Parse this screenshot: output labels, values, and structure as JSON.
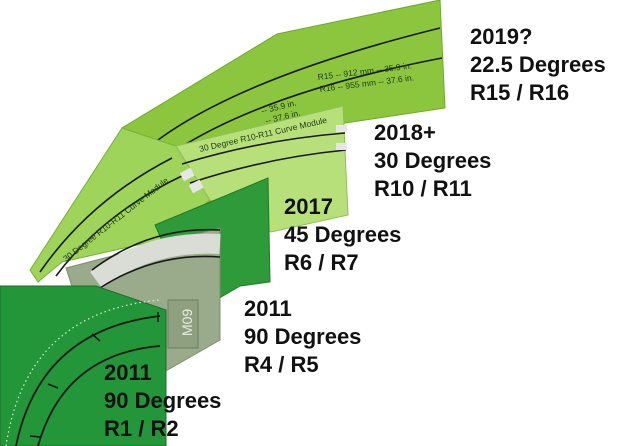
{
  "colors": {
    "lightest_green": "#b8e07a",
    "light_green": "#9fd45a",
    "lime_green": "#8cc63f",
    "mid_green": "#45a845",
    "dark_green": "#2e9a3a",
    "darkest_green": "#24963a",
    "gray_module": "#9aab8c",
    "track_line": "#1a1a1a",
    "road_band": "#d9ddd6"
  },
  "modules": [
    {
      "id": "r15-r16",
      "year": "2019?",
      "angle": "22.5 Degrees",
      "radii": "R15 / R16"
    },
    {
      "id": "r10-r11",
      "year": "2018+",
      "angle": "30 Degrees",
      "radii": "R10 / R11"
    },
    {
      "id": "r6-r7",
      "year": "2017",
      "angle": "45 Degrees",
      "radii": "R6 / R7"
    },
    {
      "id": "r4-r5",
      "year": "2011",
      "angle": "90 Degrees",
      "radii": "R4 / R5"
    },
    {
      "id": "r1-r2",
      "year": "2011",
      "angle": "90 Degrees",
      "radii": "R1 / R2"
    }
  ],
  "radius_notes": {
    "r15": "R15 -- 912 mm -- 35.9 in.",
    "r16": "R16 -- 955 mm -- 37.6 in.",
    "partial_a": "-- 35.9 in.",
    "partial_b": "-- 37.6 in."
  },
  "module_titles": {
    "upper": "30 Degree R10-R11 Curve Module",
    "lower": "30 Degree R10-R11 Curve Module"
  },
  "module_tag": "M09"
}
